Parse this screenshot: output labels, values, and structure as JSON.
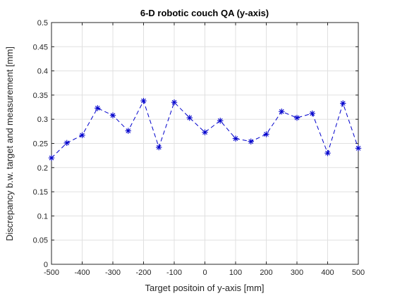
{
  "chart_data": {
    "type": "line",
    "title": "6-D robotic couch QA (y-axis)",
    "xlabel": "Target positoin of y-axis [mm]",
    "ylabel": "Discrepancy b.w. target and measurement [mm]",
    "xlim": [
      -500,
      500
    ],
    "ylim": [
      0,
      0.5
    ],
    "xticks": [
      -500,
      -400,
      -300,
      -200,
      -100,
      0,
      100,
      200,
      300,
      400,
      500
    ],
    "yticks": [
      0,
      0.05,
      0.1,
      0.15,
      0.2,
      0.25,
      0.3,
      0.35,
      0.4,
      0.45,
      0.5
    ],
    "xtick_labels": [
      "-500",
      "-400",
      "-300",
      "-200",
      "-100",
      "0",
      "100",
      "200",
      "300",
      "400",
      "500"
    ],
    "ytick_labels": [
      "0",
      "0.05",
      "0.1",
      "0.15",
      "0.2",
      "0.25",
      "0.3",
      "0.35",
      "0.4",
      "0.45",
      "0.5"
    ],
    "grid": true,
    "series": [
      {
        "color": "#0000cc",
        "line_style": "dashed",
        "marker": "asterisk",
        "x": [
          -500,
          -450,
          -400,
          -350,
          -300,
          -250,
          -200,
          -150,
          -100,
          -50,
          0,
          50,
          100,
          150,
          200,
          250,
          300,
          350,
          400,
          450,
          500
        ],
        "y": [
          0.22,
          0.251,
          0.267,
          0.323,
          0.308,
          0.276,
          0.338,
          0.242,
          0.335,
          0.303,
          0.273,
          0.297,
          0.26,
          0.254,
          0.269,
          0.316,
          0.303,
          0.312,
          0.23,
          0.333,
          0.24
        ]
      }
    ]
  }
}
